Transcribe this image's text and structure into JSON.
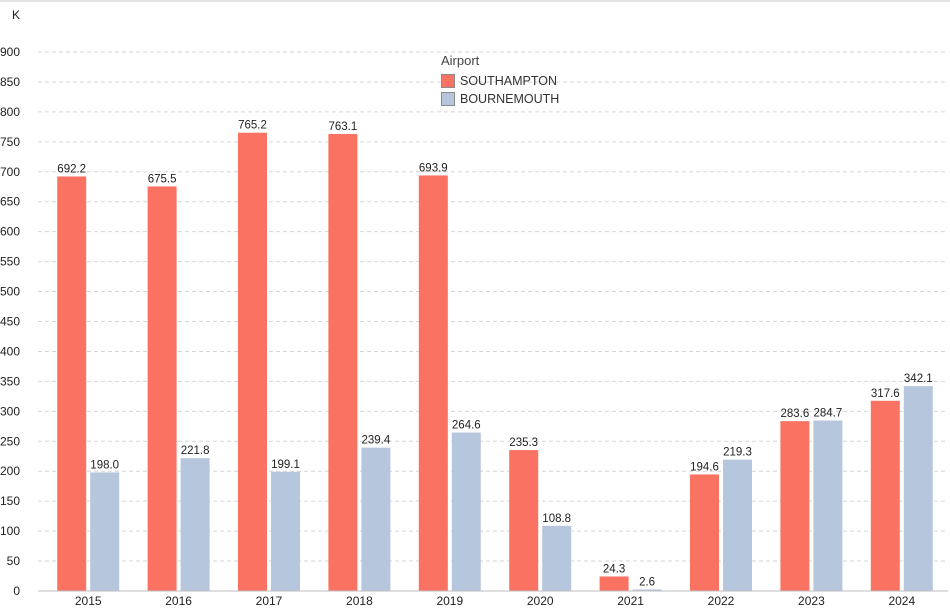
{
  "chart_data": {
    "type": "bar",
    "y_unit_label": "K",
    "legend_title": "Airport",
    "legend_position": "top-center",
    "grid": true,
    "ylim": [
      0,
      900
    ],
    "yticks": [
      0,
      50,
      100,
      150,
      200,
      250,
      300,
      350,
      400,
      450,
      500,
      550,
      600,
      650,
      700,
      750,
      800,
      850,
      900
    ],
    "categories": [
      "2015",
      "2016",
      "2017",
      "2018",
      "2019",
      "2020",
      "2021",
      "2022",
      "2023",
      "2024"
    ],
    "series": [
      {
        "name": "SOUTHAMPTON",
        "color": "#fa7362",
        "values": [
          692.2,
          675.5,
          765.2,
          763.1,
          693.9,
          235.3,
          24.3,
          194.6,
          283.6,
          317.6
        ],
        "labels": [
          "692.2",
          "675.5",
          "765.2",
          "763.1",
          "693.9",
          "235.3",
          "24.3",
          "194.6",
          "283.6",
          "317.6"
        ]
      },
      {
        "name": "BOURNEMOUTH",
        "color": "#b6c7dd",
        "values": [
          198.0,
          221.8,
          199.1,
          239.4,
          264.6,
          108.8,
          2.6,
          219.3,
          284.7,
          342.1
        ],
        "labels": [
          "198.0",
          "221.8",
          "199.1",
          "239.4",
          "264.6",
          "108.8",
          "2.6",
          "219.3",
          "284.7",
          "342.1"
        ]
      }
    ]
  }
}
